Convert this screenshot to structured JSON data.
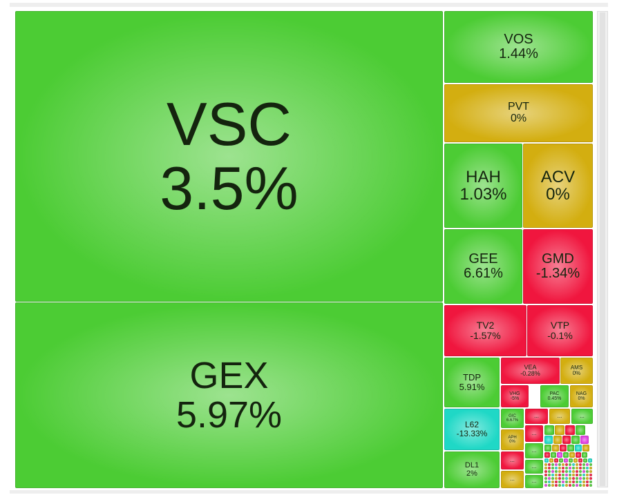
{
  "cells": [
    {
      "label": "VSC",
      "change": "3.5%",
      "color": "#4ccc34"
    },
    {
      "label": "GEX",
      "change": "5.97%",
      "color": "#4ccc34"
    },
    {
      "label": "VOS",
      "change": "1.44%",
      "color": "#4ccc34"
    },
    {
      "label": "PVT",
      "change": "0%",
      "color": "#d3ae10"
    },
    {
      "label": "HAH",
      "change": "1.03%",
      "color": "#4ccc34"
    },
    {
      "label": "ACV",
      "change": "0%",
      "color": "#d3ae10"
    },
    {
      "label": "GEE",
      "change": "6.61%",
      "color": "#4ccc34"
    },
    {
      "label": "GMD",
      "change": "-1.34%",
      "color": "#f0163e"
    },
    {
      "label": "TV2",
      "change": "-1.57%",
      "color": "#f0163e"
    },
    {
      "label": "VTP",
      "change": "-0.1%",
      "color": "#f0163e"
    },
    {
      "label": "TDP",
      "change": "5.91%",
      "color": "#4ccc34"
    },
    {
      "label": "VEA",
      "change": "-0.28%",
      "color": "#f0163e"
    },
    {
      "label": "AMS",
      "change": "0%",
      "color": "#d3ae10"
    },
    {
      "label": "VHG",
      "change": "-5%",
      "color": "#f0163e"
    },
    {
      "label": "PAC",
      "change": "0.45%",
      "color": "#4ccc34"
    },
    {
      "label": "NAG",
      "change": "0%",
      "color": "#d3ae10"
    },
    {
      "label": "L62",
      "change": "-13.33%",
      "color": "#1fd8c6"
    },
    {
      "label": "DL1",
      "change": "2%",
      "color": "#4ccc34"
    },
    {
      "label": "GIC",
      "change": "6.67%",
      "color": "#4ccc34"
    },
    {
      "label": "APH",
      "change": "0%",
      "color": "#d3ae10"
    },
    {
      "label": "...",
      "color": "#f0163e"
    },
    {
      "label": "...",
      "color": "#d3ae10"
    },
    {
      "label": "...",
      "color": "#4ccc34"
    },
    {
      "label": "...",
      "color": "#f0163e"
    },
    {
      "label": "...",
      "color": "#d3ae10"
    },
    {
      "label": "...",
      "color": "#f0163e"
    },
    {
      "label": "...",
      "color": "#4ccc34"
    },
    {
      "label": "...",
      "color": "#4ccc34"
    },
    {
      "label": "...",
      "color": "#4ccc34"
    }
  ]
}
